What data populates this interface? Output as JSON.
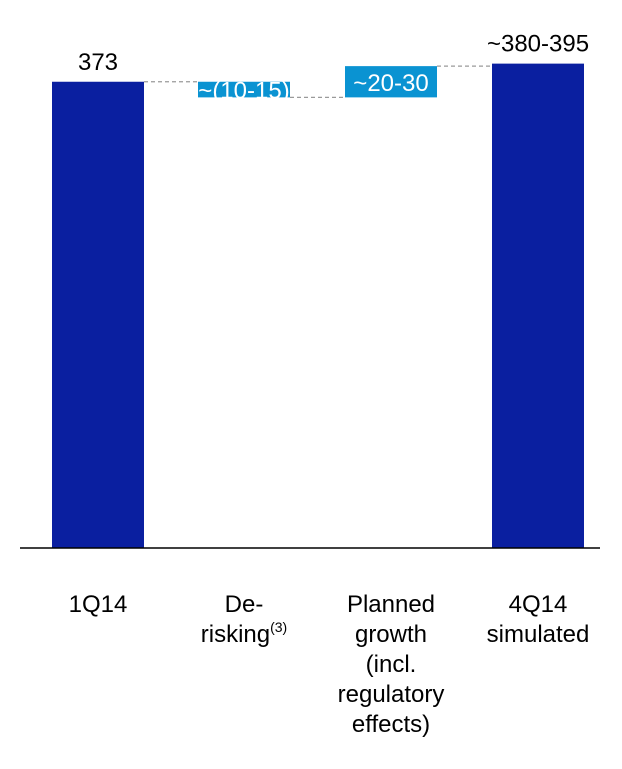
{
  "chart_data": {
    "type": "bar",
    "subtype": "waterfall",
    "categories": [
      "1Q14",
      "De-risking(3)",
      "Planned growth (incl. regulatory effects)",
      "4Q14 simulated"
    ],
    "category_lines": [
      [
        {
          "text": "1Q14"
        }
      ],
      [
        {
          "text": "De-"
        },
        {
          "text": "risking",
          "sup": "(3)"
        }
      ],
      [
        {
          "text": "Planned"
        },
        {
          "text": "growth"
        },
        {
          "text": "(incl."
        },
        {
          "text": "regulatory"
        },
        {
          "text": "effects)"
        }
      ],
      [
        {
          "text": "4Q14"
        },
        {
          "text": "simulated"
        }
      ]
    ],
    "series": [
      {
        "values": [
          373,
          -12.5,
          25,
          387.5
        ],
        "kinds": [
          "total",
          "delta",
          "delta",
          "total"
        ],
        "display_labels": [
          "373",
          "~(10-15)",
          "~20-30",
          "~380-395"
        ]
      }
    ],
    "ylim": [
      0,
      400
    ],
    "grid": false,
    "legend": "none",
    "colors": {
      "total": "#0a1fa0",
      "delta": "#0a93d2",
      "connector": "#9a9a9a",
      "axis": "#000000"
    }
  }
}
